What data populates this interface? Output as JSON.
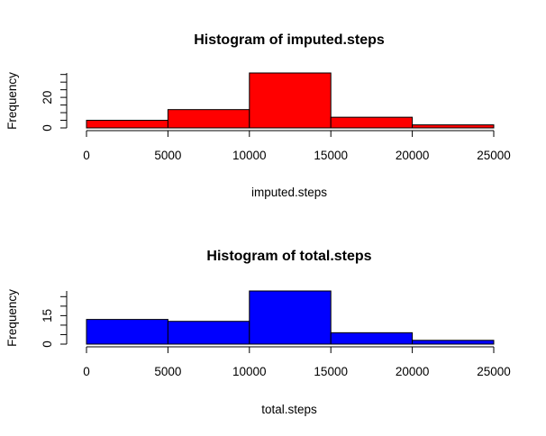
{
  "chart_data": [
    {
      "type": "bar",
      "title": "Histogram of imputed.steps",
      "xlabel": "imputed.steps",
      "ylabel": "Frequency",
      "bins": [
        [
          0,
          5000
        ],
        [
          5000,
          10000
        ],
        [
          10000,
          15000
        ],
        [
          15000,
          20000
        ],
        [
          20000,
          25000
        ]
      ],
      "values": [
        5,
        12,
        36,
        7,
        2
      ],
      "x_ticks": [
        "0",
        "5000",
        "10000",
        "15000",
        "20000",
        "25000"
      ],
      "y_ticks": [
        "0",
        "20"
      ],
      "xlim": [
        0,
        25000
      ],
      "ylim": [
        0,
        36
      ],
      "color": "#ff0000",
      "grid": false
    },
    {
      "type": "bar",
      "title": "Histogram of total.steps",
      "xlabel": "total.steps",
      "ylabel": "Frequency",
      "bins": [
        [
          0,
          5000
        ],
        [
          5000,
          10000
        ],
        [
          10000,
          15000
        ],
        [
          15000,
          20000
        ],
        [
          20000,
          25000
        ]
      ],
      "values": [
        13,
        12,
        28,
        6,
        2
      ],
      "x_ticks": [
        "0",
        "5000",
        "10000",
        "15000",
        "20000",
        "25000"
      ],
      "y_ticks": [
        "0",
        "15"
      ],
      "xlim": [
        0,
        25000
      ],
      "ylim": [
        0,
        28
      ],
      "color": "#0000ff",
      "grid": false
    }
  ]
}
